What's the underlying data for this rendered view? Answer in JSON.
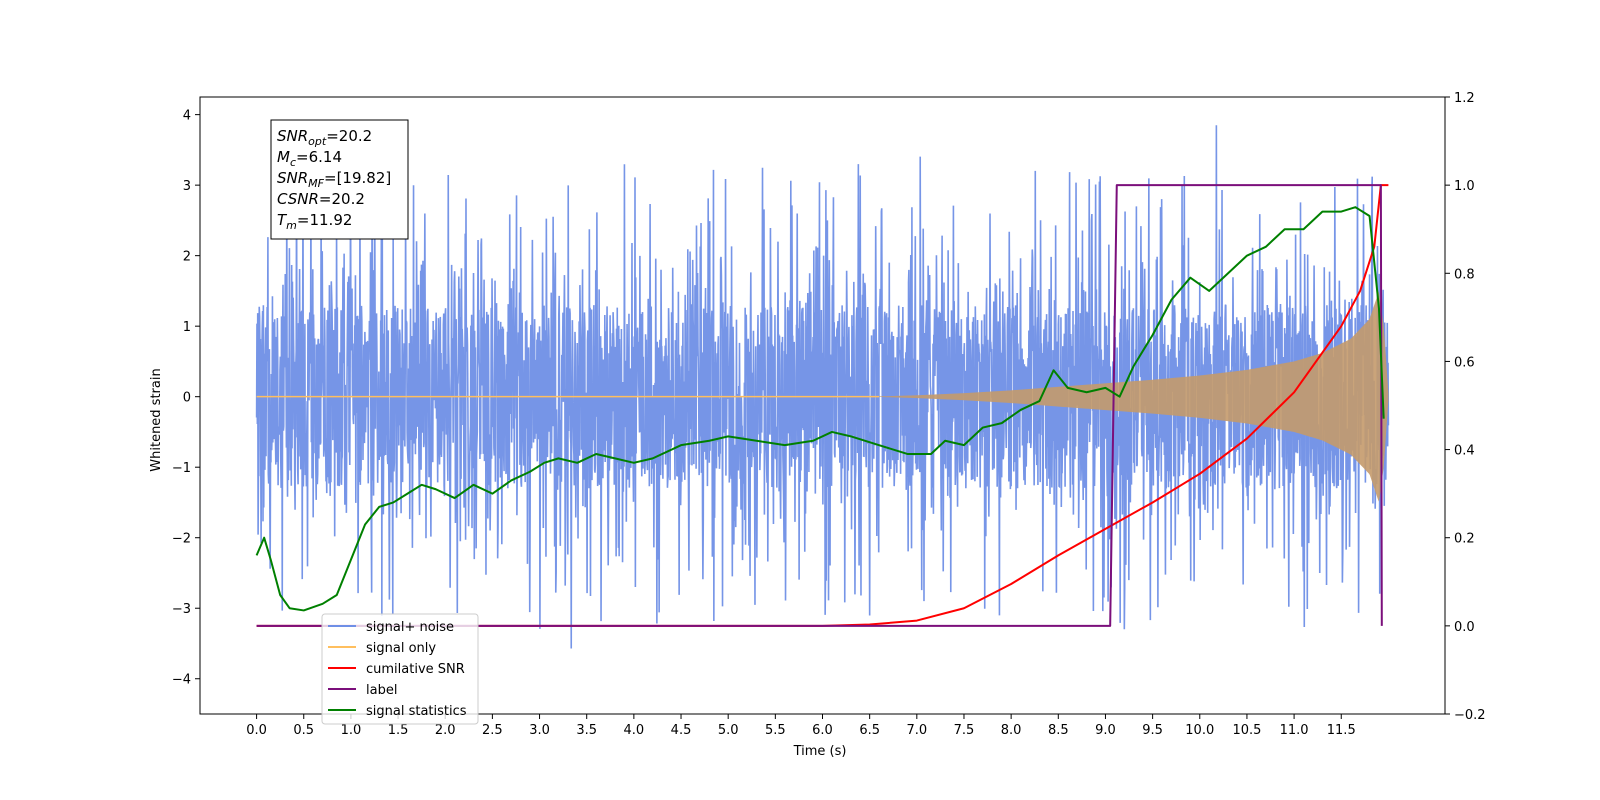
{
  "chart_data": {
    "type": "line",
    "xlabel": "Time (s)",
    "ylabel": "Whitened strain",
    "xlim": [
      -0.6,
      12.6
    ],
    "ylim": [
      -4.5,
      4.25
    ],
    "y2lim": [
      -0.2,
      1.2
    ],
    "x_ticks": [
      "0.0",
      "0.5",
      "1.0",
      "1.5",
      "2.0",
      "2.5",
      "3.0",
      "3.5",
      "4.0",
      "4.5",
      "5.0",
      "5.5",
      "6.0",
      "6.5",
      "7.0",
      "7.5",
      "8.0",
      "8.5",
      "9.0",
      "9.5",
      "10.0",
      "10.5",
      "11.0",
      "11.5"
    ],
    "y_ticks": [
      "4",
      "3",
      "2",
      "1",
      "0",
      "−1",
      "−2",
      "−3",
      "−4"
    ],
    "y2_ticks": [
      "1.2",
      "1.0",
      "0.8",
      "0.6",
      "0.4",
      "0.2",
      "0.0",
      "−0.2"
    ],
    "grid": false,
    "legend_position": "lower-left",
    "annotation": {
      "lines": [
        {
          "base": "SNR",
          "sub": "opt",
          "value": "=20.2"
        },
        {
          "base": "M",
          "sub": "c",
          "value": "=6.14"
        },
        {
          "base": "SNR",
          "sub": "MF",
          "value": "=[19.82]"
        },
        {
          "base": "CSNR",
          "sub": "",
          "value": "=20.2"
        },
        {
          "base": "T",
          "sub": "m",
          "value": "=11.92"
        }
      ]
    },
    "legend": [
      {
        "label": "signal+ noise",
        "color": "#6f8fe6"
      },
      {
        "label": "signal only",
        "color": "#ffbf5e"
      },
      {
        "label": "cumilative SNR",
        "color": "#ff0000"
      },
      {
        "label": "label",
        "color": "#7b0f7b"
      },
      {
        "label": "signal statistics",
        "color": "#008000"
      }
    ],
    "series": [
      {
        "name": "signal+ noise",
        "axis": "left",
        "color": "#6f8fe6",
        "noise_band": {
          "x_start": 0.0,
          "x_end": 12.0,
          "typical_amplitude": 1.5,
          "peak_max": 3.85,
          "peak_min": -4.1
        }
      },
      {
        "name": "signal only",
        "axis": "left",
        "color": "#ffbf5e",
        "envelope": {
          "x": [
            0.0,
            6.5,
            7.0,
            7.5,
            8.0,
            8.5,
            9.0,
            9.5,
            10.0,
            10.5,
            11.0,
            11.3,
            11.6,
            11.8,
            11.9,
            11.95,
            12.0
          ],
          "amplitude": [
            0.0,
            0.0,
            0.02,
            0.05,
            0.09,
            0.14,
            0.19,
            0.24,
            0.3,
            0.38,
            0.5,
            0.62,
            0.82,
            1.1,
            1.5,
            1.0,
            0.05
          ]
        }
      },
      {
        "name": "cumilative SNR",
        "axis": "right",
        "color": "#ff0000",
        "x": [
          0.0,
          6.0,
          6.5,
          7.0,
          7.5,
          8.0,
          8.5,
          9.0,
          9.5,
          10.0,
          10.5,
          11.0,
          11.5,
          11.7,
          11.85,
          11.92,
          12.0
        ],
        "y": [
          0.0,
          0.0,
          0.003,
          0.012,
          0.04,
          0.095,
          0.16,
          0.22,
          0.28,
          0.345,
          0.425,
          0.53,
          0.68,
          0.76,
          0.86,
          1.0,
          1.0
        ]
      },
      {
        "name": "label",
        "axis": "right",
        "color": "#7b0f7b",
        "x": [
          0.0,
          9.05,
          9.12,
          11.88,
          11.92,
          11.93
        ],
        "y": [
          0.0,
          0.0,
          1.0,
          1.0,
          1.0,
          0.0
        ]
      },
      {
        "name": "signal statistics",
        "axis": "right",
        "color": "#008000",
        "x": [
          0.0,
          0.08,
          0.15,
          0.25,
          0.35,
          0.5,
          0.7,
          0.85,
          1.0,
          1.15,
          1.3,
          1.45,
          1.6,
          1.75,
          1.9,
          2.1,
          2.3,
          2.5,
          2.7,
          2.9,
          3.05,
          3.2,
          3.4,
          3.6,
          3.8,
          4.0,
          4.2,
          4.5,
          4.8,
          5.0,
          5.3,
          5.6,
          5.9,
          6.1,
          6.3,
          6.6,
          6.9,
          7.15,
          7.3,
          7.5,
          7.7,
          7.9,
          8.1,
          8.3,
          8.45,
          8.6,
          8.8,
          9.0,
          9.15,
          9.3,
          9.5,
          9.7,
          9.9,
          10.1,
          10.3,
          10.5,
          10.7,
          10.9,
          11.1,
          11.3,
          11.5,
          11.65,
          11.8,
          11.9,
          11.95
        ],
        "y": [
          0.16,
          0.2,
          0.15,
          0.07,
          0.04,
          0.035,
          0.05,
          0.07,
          0.15,
          0.23,
          0.27,
          0.28,
          0.3,
          0.32,
          0.31,
          0.29,
          0.32,
          0.3,
          0.33,
          0.35,
          0.37,
          0.38,
          0.37,
          0.39,
          0.38,
          0.37,
          0.38,
          0.41,
          0.42,
          0.43,
          0.42,
          0.41,
          0.42,
          0.44,
          0.43,
          0.41,
          0.39,
          0.39,
          0.42,
          0.41,
          0.45,
          0.46,
          0.49,
          0.51,
          0.58,
          0.54,
          0.53,
          0.54,
          0.52,
          0.59,
          0.66,
          0.74,
          0.79,
          0.76,
          0.8,
          0.84,
          0.86,
          0.9,
          0.9,
          0.94,
          0.94,
          0.95,
          0.93,
          0.72,
          0.47
        ]
      }
    ]
  }
}
